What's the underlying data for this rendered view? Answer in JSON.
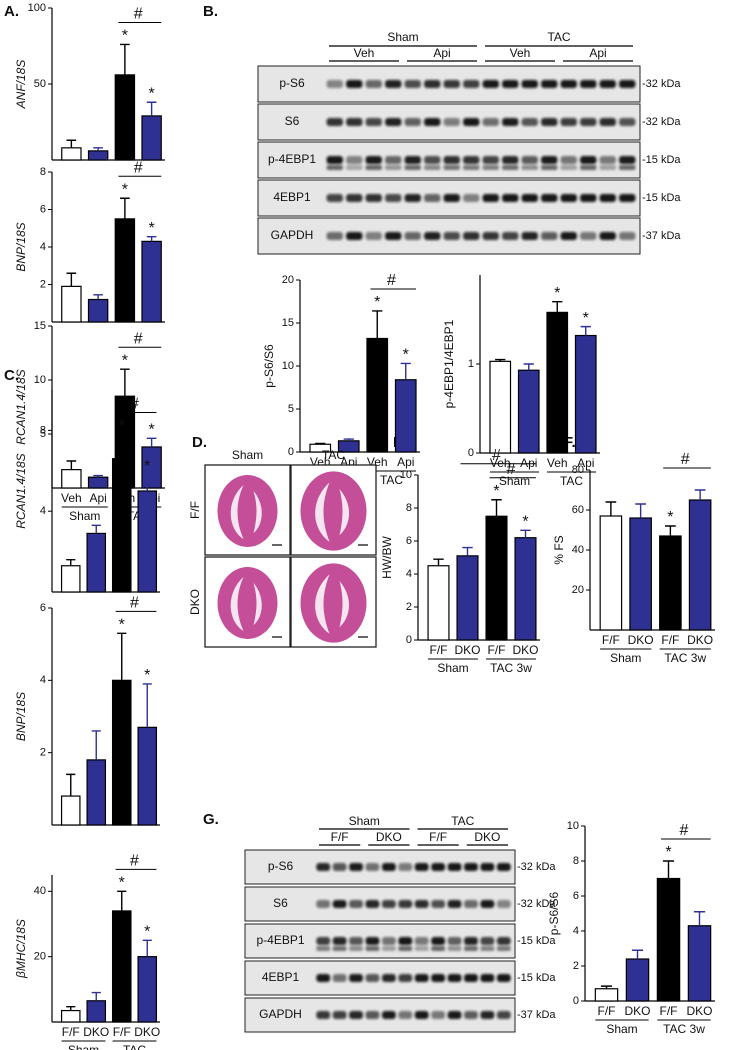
{
  "panels": {
    "A": "A.",
    "B": "B.",
    "C": "C.",
    "D": "D.",
    "E": "E.",
    "F": "F.",
    "G": "G."
  },
  "blots": [
    {
      "groups": [
        {
          "label": "Sham",
          "subgroups": [
            "Veh",
            "Api"
          ]
        },
        {
          "label": "TAC",
          "subgroups": [
            "Veh",
            "Api"
          ]
        }
      ],
      "rows": [
        {
          "label": "p-S6",
          "size": "-32 kDa"
        },
        {
          "label": "S6",
          "size": "-32 kDa"
        },
        {
          "label": "p-4EBP1",
          "size": "-15 kDa"
        },
        {
          "label": "4EBP1",
          "size": "-15 kDa"
        },
        {
          "label": "GAPDH",
          "size": "-37 kDa"
        }
      ]
    },
    {
      "groups": [
        {
          "label": "Sham",
          "subgroups": [
            "F/F",
            "DKO"
          ]
        },
        {
          "label": "TAC",
          "subgroups": [
            "F/F",
            "DKO"
          ]
        }
      ],
      "rows": [
        {
          "label": "p-S6",
          "size": "-32 kDa"
        },
        {
          "label": "S6",
          "size": "-32 kDa"
        },
        {
          "label": "p-4EBP1",
          "size": "-15 kDa"
        },
        {
          "label": "4EBP1",
          "size": "-15 kDa"
        },
        {
          "label": "GAPDH",
          "size": "-37 kDa"
        }
      ]
    }
  ],
  "histology": {
    "columns": [
      "Sham",
      "TAC"
    ],
    "rows": [
      "F/F",
      "DKO"
    ]
  },
  "chart_data": [
    {
      "type": "bar",
      "y_label": "ANF/18S",
      "categories": [
        null,
        null,
        null,
        null
      ],
      "values": [
        8,
        6,
        56,
        29
      ],
      "errors": [
        5,
        2,
        20,
        9
      ],
      "colors": [
        "#ffffff",
        "#2e3192",
        "#000000",
        "#2e3192"
      ],
      "annotations": [
        null,
        null,
        "*",
        "*"
      ],
      "brackets": [
        "#"
      ],
      "ylim": [
        0,
        100
      ],
      "yticks": [
        50,
        100
      ]
    },
    {
      "type": "bar",
      "y_label": "BNP/18S",
      "categories": [
        null,
        null,
        null,
        null
      ],
      "values": [
        1.9,
        1.2,
        5.5,
        4.3
      ],
      "errors": [
        0.7,
        0.25,
        1.1,
        0.25
      ],
      "colors": [
        "#ffffff",
        "#2e3192",
        "#000000",
        "#2e3192"
      ],
      "annotations": [
        null,
        null,
        "*",
        "*"
      ],
      "brackets": [
        "#"
      ],
      "ylim": [
        0,
        8
      ],
      "yticks": [
        2,
        4,
        6,
        8
      ]
    },
    {
      "type": "bar",
      "y_label": "RCAN1.4/18S",
      "categories": [
        "Veh",
        "Api",
        "Veh",
        "Api"
      ],
      "groups": [
        "Sham",
        "TAC"
      ],
      "values": [
        1.7,
        1.0,
        8.5,
        3.8
      ],
      "errors": [
        0.8,
        0.15,
        2.5,
        0.8
      ],
      "colors": [
        "#ffffff",
        "#2e3192",
        "#000000",
        "#2e3192"
      ],
      "annotations": [
        null,
        null,
        "*",
        "*"
      ],
      "brackets": [
        "#"
      ],
      "ylim": [
        0,
        15
      ],
      "yticks": [
        5,
        10,
        15
      ]
    },
    {
      "type": "bar",
      "y_label": "p-S6/S6",
      "categories": [
        "Veh",
        "Api",
        "Veh",
        "Api"
      ],
      "groups": [
        "Sham",
        "TAC"
      ],
      "values": [
        0.9,
        1.3,
        13.2,
        8.4
      ],
      "errors": [
        0.1,
        0.2,
        3.2,
        1.9
      ],
      "colors": [
        "#ffffff",
        "#2e3192",
        "#000000",
        "#2e3192"
      ],
      "annotations": [
        null,
        null,
        "*",
        "*"
      ],
      "brackets": [
        "#"
      ],
      "ylim": [
        0,
        20
      ],
      "yticks": [
        0,
        5,
        10,
        15,
        20
      ]
    },
    {
      "type": "bar",
      "y_label": "p-4EBP1/4EBP1",
      "categories": [
        "Veh",
        "Api",
        "Veh",
        "Api"
      ],
      "groups": [
        "Sham",
        "TAC"
      ],
      "values": [
        1.03,
        0.93,
        1.58,
        1.32
      ],
      "errors": [
        0.02,
        0.07,
        0.12,
        0.1
      ],
      "colors": [
        "#ffffff",
        "#2e3192",
        "#000000",
        "#2e3192"
      ],
      "annotations": [
        null,
        null,
        "*",
        "*"
      ],
      "ylim": [
        0,
        2
      ],
      "yticks": [
        0,
        1
      ]
    },
    {
      "type": "bar",
      "y_label": "RCAN1.4/18S",
      "categories": [
        null,
        null,
        null,
        null
      ],
      "values": [
        1.3,
        2.9,
        6.6,
        5.0
      ],
      "errors": [
        0.3,
        0.4,
        1.2,
        0.8
      ],
      "colors": [
        "#ffffff",
        "#2e3192",
        "#000000",
        "#2e3192"
      ],
      "annotations": [
        null,
        null,
        "*",
        "*"
      ],
      "brackets": [
        "#"
      ],
      "ylim": [
        0,
        10
      ],
      "yticks": [
        4,
        8
      ]
    },
    {
      "type": "bar",
      "y_label": "BNP/18S",
      "categories": [
        null,
        null,
        null,
        null
      ],
      "values": [
        0.8,
        1.8,
        4.0,
        2.7
      ],
      "errors": [
        0.6,
        0.8,
        1.3,
        1.2
      ],
      "colors": [
        "#ffffff",
        "#2e3192",
        "#000000",
        "#2e3192"
      ],
      "annotations": [
        null,
        null,
        "*",
        "*"
      ],
      "brackets": [
        "#"
      ],
      "ylim": [
        0,
        6
      ],
      "yticks": [
        2,
        4,
        6
      ]
    },
    {
      "type": "bar",
      "y_label": "βMHC/18S",
      "categories": [
        "F/F",
        "DKO",
        "F/F",
        "DKO"
      ],
      "groups": [
        "Sham",
        "TAC"
      ],
      "values": [
        3.5,
        6.5,
        34,
        20
      ],
      "errors": [
        1.2,
        2.5,
        6,
        5
      ],
      "colors": [
        "#ffffff",
        "#2e3192",
        "#000000",
        "#2e3192"
      ],
      "annotations": [
        null,
        null,
        "*",
        "*"
      ],
      "brackets": [
        "#"
      ],
      "ylim": [
        0,
        45
      ],
      "yticks": [
        20,
        40
      ]
    },
    {
      "type": "bar",
      "y_label": "HW/BW",
      "categories": [
        "F/F",
        "DKO",
        "F/F",
        "DKO"
      ],
      "groups": [
        "Sham",
        "TAC 3w"
      ],
      "values": [
        4.5,
        5.1,
        7.5,
        6.2
      ],
      "errors": [
        0.4,
        0.5,
        1.0,
        0.45
      ],
      "colors": [
        "#ffffff",
        "#2e3192",
        "#000000",
        "#2e3192"
      ],
      "annotations": [
        null,
        null,
        "*",
        "*"
      ],
      "brackets": [
        "#",
        "#"
      ],
      "ylim": [
        0,
        10
      ],
      "yticks": [
        0,
        2,
        4,
        6,
        8,
        10
      ]
    },
    {
      "type": "bar",
      "y_label": "% FS",
      "categories": [
        "F/F",
        "DKO",
        "F/F",
        "DKO"
      ],
      "groups": [
        "Sham",
        "TAC 3w"
      ],
      "values": [
        57,
        56,
        47,
        65
      ],
      "errors": [
        7,
        7,
        5,
        5
      ],
      "colors": [
        "#ffffff",
        "#2e3192",
        "#000000",
        "#2e3192"
      ],
      "annotations": [
        null,
        null,
        "*",
        null
      ],
      "brackets": [
        "#"
      ],
      "ylim": [
        0,
        80
      ],
      "yticks": [
        20,
        40,
        60,
        80
      ]
    },
    {
      "type": "bar",
      "y_label": "p-S6/S6",
      "categories": [
        "F/F",
        "DKO",
        "F/F",
        "DKO"
      ],
      "groups": [
        "Sham",
        "TAC 3w"
      ],
      "values": [
        0.7,
        2.4,
        7.0,
        4.3
      ],
      "errors": [
        0.15,
        0.5,
        1.0,
        0.8
      ],
      "colors": [
        "#ffffff",
        "#2e3192",
        "#000000",
        "#2e3192"
      ],
      "annotations": [
        null,
        null,
        "*",
        null
      ],
      "brackets": [
        "#"
      ],
      "ylim": [
        0,
        10
      ],
      "yticks": [
        0,
        2,
        4,
        6,
        8,
        10
      ]
    }
  ]
}
